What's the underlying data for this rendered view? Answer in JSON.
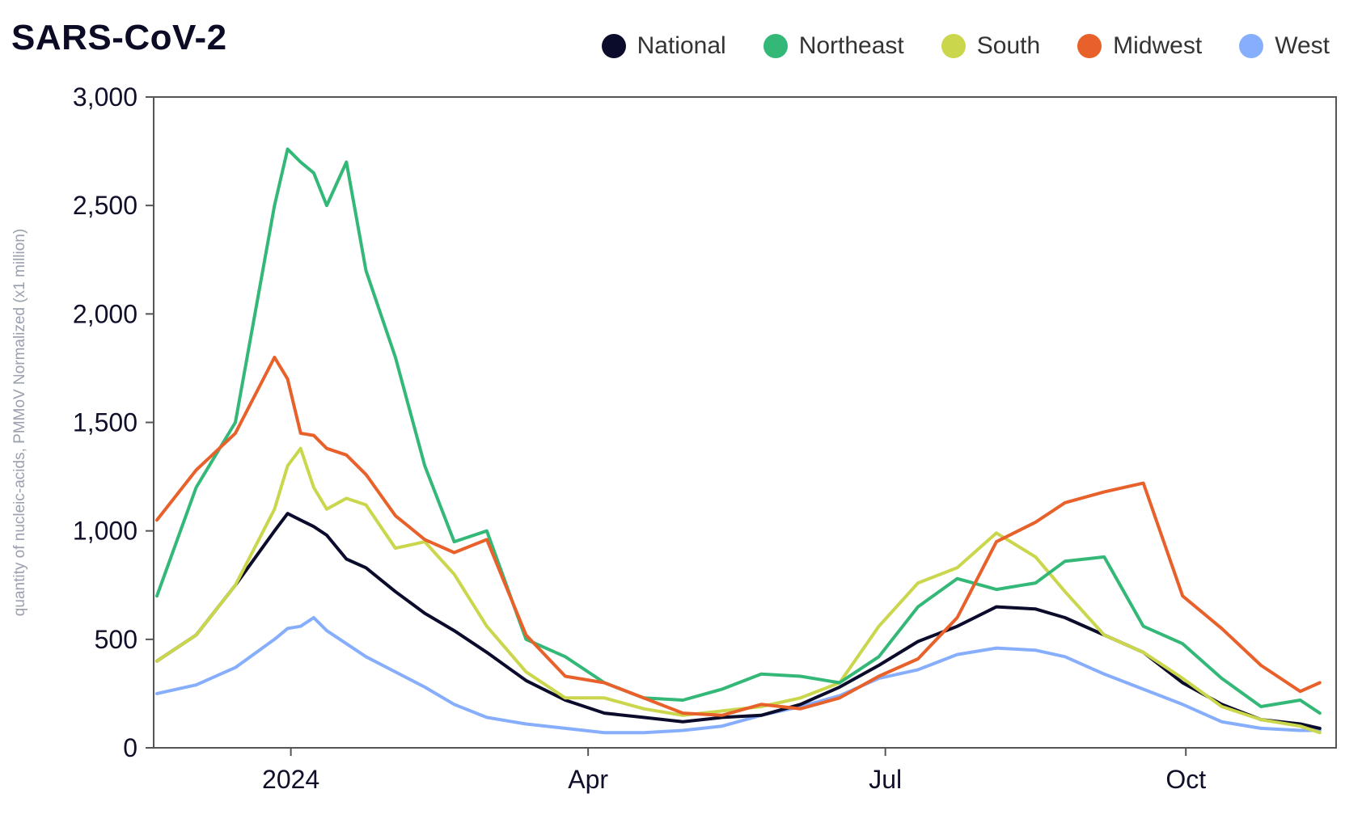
{
  "chart_data": {
    "type": "line",
    "title": "SARS-CoV-2",
    "ylabel": "quantity of nucleic-acids, PMMoV Normalized (x1 million)",
    "xlabel": "",
    "ylim": [
      0,
      3000
    ],
    "y_ticks": [
      {
        "value": 0,
        "label": "0"
      },
      {
        "value": 500,
        "label": "500"
      },
      {
        "value": 1000,
        "label": "1,000"
      },
      {
        "value": 1500,
        "label": "1,500"
      },
      {
        "value": 2000,
        "label": "2,000"
      },
      {
        "value": 2500,
        "label": "2,500"
      },
      {
        "value": 3000,
        "label": "3,000"
      }
    ],
    "x_range": [
      "2023-11-20",
      "2024-11-16"
    ],
    "x_ticks": [
      {
        "date": "2024-01-01",
        "label": "2024"
      },
      {
        "date": "2024-04-01",
        "label": "Apr"
      },
      {
        "date": "2024-07-01",
        "label": "Jul"
      },
      {
        "date": "2024-10-01",
        "label": "Oct"
      }
    ],
    "legend_position": "top-right",
    "grid": false,
    "x": [
      "2023-11-21",
      "2023-12-03",
      "2023-12-15",
      "2023-12-27",
      "2023-12-31",
      "2024-01-04",
      "2024-01-08",
      "2024-01-12",
      "2024-01-18",
      "2024-01-24",
      "2024-02-02",
      "2024-02-11",
      "2024-02-20",
      "2024-03-01",
      "2024-03-13",
      "2024-03-25",
      "2024-04-06",
      "2024-04-18",
      "2024-04-30",
      "2024-05-12",
      "2024-05-24",
      "2024-06-05",
      "2024-06-17",
      "2024-06-29",
      "2024-07-11",
      "2024-07-23",
      "2024-08-04",
      "2024-08-16",
      "2024-08-25",
      "2024-09-06",
      "2024-09-18",
      "2024-09-30",
      "2024-10-12",
      "2024-10-24",
      "2024-11-05",
      "2024-11-11"
    ],
    "series": [
      {
        "name": "National",
        "color": "#0b0b2c",
        "values": [
          400,
          520,
          750,
          1000,
          1080,
          1050,
          1020,
          980,
          870,
          830,
          720,
          620,
          540,
          440,
          310,
          220,
          160,
          140,
          120,
          140,
          150,
          200,
          280,
          380,
          490,
          560,
          650,
          640,
          600,
          520,
          440,
          300,
          200,
          130,
          110,
          90
        ]
      },
      {
        "name": "Northeast",
        "color": "#33b877",
        "values": [
          700,
          1200,
          1500,
          2500,
          2760,
          2700,
          2650,
          2500,
          2700,
          2200,
          1800,
          1300,
          950,
          1000,
          500,
          420,
          300,
          230,
          220,
          270,
          340,
          330,
          300,
          420,
          650,
          780,
          730,
          760,
          860,
          880,
          560,
          480,
          320,
          190,
          220,
          160
        ]
      },
      {
        "name": "South",
        "color": "#cad64b",
        "values": [
          400,
          520,
          750,
          1100,
          1300,
          1380,
          1200,
          1100,
          1150,
          1120,
          920,
          950,
          800,
          560,
          350,
          230,
          230,
          180,
          150,
          170,
          190,
          230,
          300,
          560,
          760,
          830,
          990,
          880,
          720,
          520,
          440,
          320,
          190,
          130,
          100,
          70
        ]
      },
      {
        "name": "Midwest",
        "color": "#e8602a",
        "values": [
          1050,
          1280,
          1450,
          1800,
          1700,
          1450,
          1440,
          1380,
          1350,
          1260,
          1070,
          960,
          900,
          960,
          520,
          330,
          300,
          230,
          160,
          150,
          200,
          180,
          230,
          330,
          410,
          600,
          950,
          1040,
          1130,
          1180,
          1220,
          700,
          550,
          380,
          260,
          300
        ]
      },
      {
        "name": "West",
        "color": "#86aefc",
        "values": [
          250,
          290,
          370,
          500,
          550,
          560,
          600,
          540,
          480,
          420,
          350,
          280,
          200,
          140,
          110,
          90,
          70,
          70,
          80,
          100,
          150,
          190,
          240,
          320,
          360,
          430,
          460,
          450,
          420,
          340,
          270,
          200,
          120,
          90,
          80,
          80
        ]
      }
    ]
  }
}
